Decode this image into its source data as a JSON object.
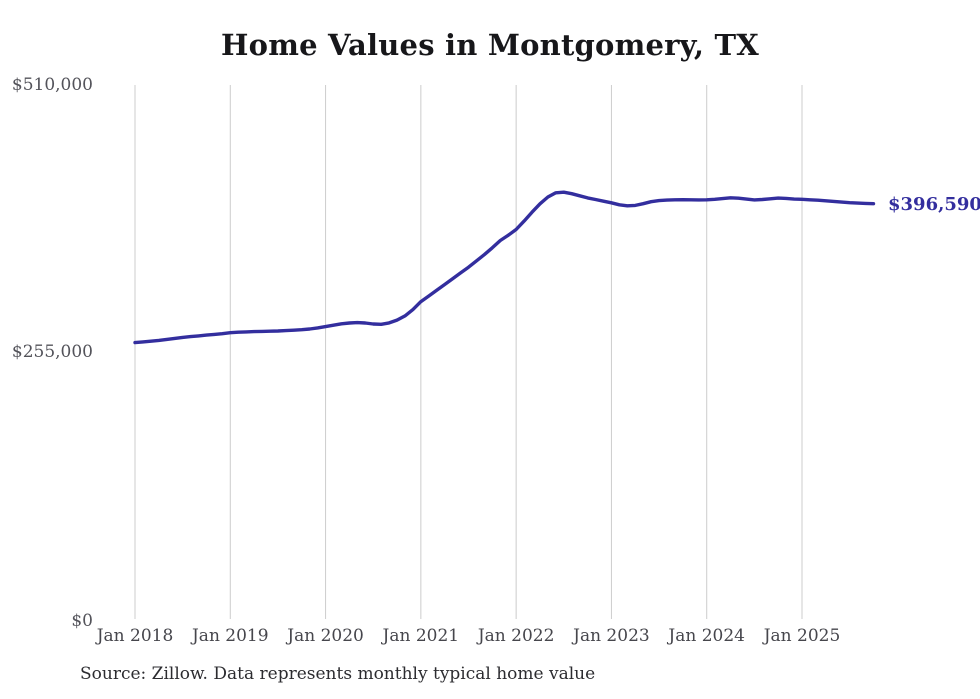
{
  "page": {
    "title": "Home Values in Montgomery, TX",
    "source_note": "Source: Zillow. Data represents monthly typical home value"
  },
  "chart_data": {
    "type": "line",
    "title": "Home Values in Montgomery, TX",
    "series_name": "Typical home value (monthly)",
    "x_start": "Jan 2018",
    "x_end": "Oct 2025",
    "x_frequency": "monthly",
    "x_tick_labels": [
      "Jan 2018",
      "Jan 2019",
      "Jan 2020",
      "Jan 2021",
      "Jan 2022",
      "Jan 2023",
      "Jan 2024",
      "Jan 2025"
    ],
    "y_ticks": [
      {
        "label": "$0",
        "value": 0
      },
      {
        "label": "$255,000",
        "value": 255000
      },
      {
        "label": "$510,000",
        "value": 510000
      }
    ],
    "ylim": [
      0,
      510000
    ],
    "grid": "vertical-only",
    "legend": "none",
    "line_color": "#332E9E",
    "gridline_color": "#cccccc",
    "end_label": "$396,590",
    "end_value": 396590,
    "values": [
      264000,
      264600,
      265300,
      266100,
      267000,
      268000,
      268900,
      269700,
      270400,
      271100,
      271800,
      272500,
      273400,
      273900,
      274200,
      274500,
      274700,
      274900,
      275100,
      275400,
      275800,
      276300,
      277000,
      278000,
      279300,
      280600,
      281900,
      282700,
      283100,
      282700,
      281700,
      281500,
      282800,
      285500,
      289500,
      295500,
      303100,
      308500,
      314000,
      319500,
      325000,
      330500,
      336000,
      342000,
      348000,
      354500,
      361500,
      366500,
      372000,
      380000,
      388500,
      396500,
      403000,
      407000,
      407600,
      406200,
      404200,
      402200,
      400600,
      399000,
      397500,
      395600,
      394600,
      395000,
      396600,
      398500,
      399600,
      400100,
      400400,
      400500,
      400400,
      400300,
      400400,
      400800,
      401500,
      402300,
      401900,
      401000,
      400300,
      400600,
      401300,
      402000,
      401700,
      401000,
      400800,
      400400,
      400000,
      399400,
      398800,
      398200,
      397600,
      397200,
      396900,
      396590
    ]
  }
}
